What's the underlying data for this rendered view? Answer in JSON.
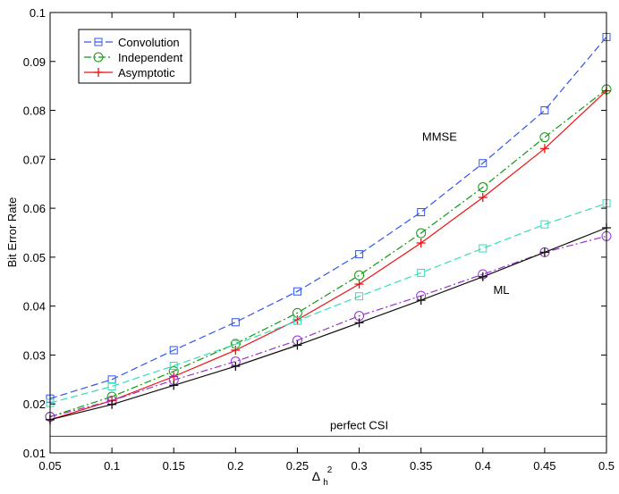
{
  "chart_data": {
    "type": "line",
    "title": "",
    "xlabel": "Δ",
    "xlabel_sup": "2",
    "xlabel_sub": "h",
    "ylabel": "Bit Error Rate",
    "xlim": [
      0.05,
      0.5
    ],
    "ylim": [
      0.01,
      0.1
    ],
    "x_ticks": [
      0.05,
      0.1,
      0.15,
      0.2,
      0.25,
      0.3,
      0.35,
      0.4,
      0.45,
      0.5
    ],
    "x_tick_labels": [
      "0.05",
      "0.1",
      "0.15",
      "0.2",
      "0.25",
      "0.3",
      "0.35",
      "0.4",
      "0.45",
      "0.5"
    ],
    "y_ticks": [
      0.01,
      0.02,
      0.03,
      0.04,
      0.05,
      0.06,
      0.07,
      0.08,
      0.09,
      0.1
    ],
    "y_tick_labels": [
      "0.01",
      "0.02",
      "0.03",
      "0.04",
      "0.05",
      "0.06",
      "0.07",
      "0.08",
      "0.09",
      "0.1"
    ],
    "grid": false,
    "legend_position": "top-left",
    "legend": [
      {
        "label": "Convolution",
        "color": "#3355ee",
        "dash": "dashed",
        "marker": "square"
      },
      {
        "label": "Independent",
        "color": "#119911",
        "dash": "dashdot",
        "marker": "circle"
      },
      {
        "label": "Asymptotic",
        "color": "#ee1111",
        "dash": "solid",
        "marker": "plus"
      }
    ],
    "x": [
      0.05,
      0.1,
      0.15,
      0.2,
      0.25,
      0.3,
      0.35,
      0.4,
      0.45,
      0.5
    ],
    "series": [
      {
        "name": "MMSE Convolution",
        "color": "#3355ee",
        "dash": "dashed",
        "marker": "square",
        "values": [
          0.0211,
          0.025,
          0.031,
          0.0367,
          0.043,
          0.0506,
          0.0592,
          0.0692,
          0.08,
          0.095
        ]
      },
      {
        "name": "MMSE Independent",
        "color": "#119911",
        "dash": "dashdot",
        "marker": "circle",
        "values": [
          0.0174,
          0.0215,
          0.0267,
          0.0323,
          0.0386,
          0.0463,
          0.0549,
          0.0643,
          0.0745,
          0.0843
        ]
      },
      {
        "name": "MMSE Asymptotic",
        "color": "#ee1111",
        "dash": "solid",
        "marker": "plus",
        "values": [
          0.0168,
          0.0207,
          0.0256,
          0.031,
          0.0372,
          0.0445,
          0.0529,
          0.0622,
          0.0722,
          0.084
        ]
      },
      {
        "name": "ML Convolution",
        "color": "#33ddbb",
        "dash": "dashed",
        "marker": "square",
        "values": [
          0.0202,
          0.0236,
          0.0278,
          0.0322,
          0.037,
          0.042,
          0.0468,
          0.0518,
          0.0567,
          0.061
        ]
      },
      {
        "name": "ML Independent",
        "color": "#9933cc",
        "dash": "dashdot",
        "marker": "circle",
        "values": [
          0.0174,
          0.0207,
          0.0249,
          0.0287,
          0.033,
          0.038,
          0.0421,
          0.0465,
          0.051,
          0.0543
        ]
      },
      {
        "name": "ML Asymptotic",
        "color": "#111111",
        "dash": "solid",
        "marker": "plus",
        "values": [
          0.0168,
          0.0199,
          0.0238,
          0.0277,
          0.032,
          0.0366,
          0.0412,
          0.046,
          0.051,
          0.056
        ]
      },
      {
        "name": "perfect CSI",
        "color": "#444444",
        "dash": "solid",
        "marker": "none",
        "values": [
          0.0134,
          0.0134,
          0.0134,
          0.0134,
          0.0134,
          0.0134,
          0.0134,
          0.0134,
          0.0134,
          0.0134
        ]
      }
    ],
    "annotations": [
      {
        "text": "MMSE",
        "x": 0.365,
        "y": 0.0738
      },
      {
        "text": "ML",
        "x": 0.415,
        "y": 0.0425
      },
      {
        "text": "perfect CSI",
        "x": 0.3,
        "y": 0.0148
      }
    ]
  }
}
